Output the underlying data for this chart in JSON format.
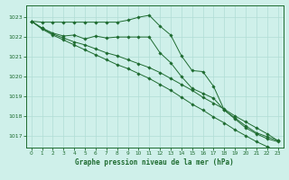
{
  "bg_color": "#cff0ea",
  "grid_color": "#b0ddd5",
  "line_color": "#1e6b30",
  "title": "Graphe pression niveau de la mer (hPa)",
  "xlim": [
    -0.5,
    23.5
  ],
  "ylim": [
    1016.4,
    1023.6
  ],
  "yticks": [
    1017,
    1018,
    1019,
    1020,
    1021,
    1022,
    1023
  ],
  "xticks": [
    0,
    1,
    2,
    3,
    4,
    5,
    6,
    7,
    8,
    9,
    10,
    11,
    12,
    13,
    14,
    15,
    16,
    17,
    18,
    19,
    20,
    21,
    22,
    23
  ],
  "series": [
    {
      "x": [
        0,
        1,
        2,
        3,
        4,
        5,
        6,
        7,
        8,
        9,
        10,
        11,
        12,
        13,
        14,
        15,
        16,
        17,
        18,
        19,
        20,
        21,
        22,
        23
      ],
      "y": [
        1022.8,
        1022.75,
        1022.75,
        1022.75,
        1022.75,
        1022.75,
        1022.75,
        1022.75,
        1022.75,
        1022.85,
        1023.0,
        1023.1,
        1022.55,
        1022.1,
        1021.05,
        1020.3,
        1020.25,
        1019.5,
        1018.3,
        1017.9,
        1017.5,
        1017.15,
        1016.95,
        1016.75
      ]
    },
    {
      "x": [
        0,
        1,
        2,
        3,
        4,
        5,
        6,
        7,
        8,
        9,
        10,
        11,
        12,
        13,
        14,
        15,
        16,
        17,
        18,
        19,
        20,
        21,
        22,
        23
      ],
      "y": [
        1022.8,
        1022.45,
        1022.2,
        1022.05,
        1022.1,
        1021.9,
        1022.05,
        1021.95,
        1022.0,
        1022.0,
        1022.0,
        1022.0,
        1021.2,
        1020.7,
        1020.0,
        1019.4,
        1019.15,
        1018.9,
        1018.3,
        1017.85,
        1017.4,
        1017.1,
        1016.85,
        1016.7
      ]
    },
    {
      "x": [
        0,
        1,
        2,
        3,
        4,
        5,
        6,
        7,
        8,
        9,
        10,
        11,
        12,
        13,
        14,
        15,
        16,
        17,
        18,
        19,
        20,
        21,
        22,
        23
      ],
      "y": [
        1022.8,
        1022.45,
        1022.15,
        1021.95,
        1021.75,
        1021.6,
        1021.4,
        1021.2,
        1021.05,
        1020.85,
        1020.65,
        1020.45,
        1020.2,
        1019.9,
        1019.6,
        1019.3,
        1018.95,
        1018.65,
        1018.35,
        1018.0,
        1017.7,
        1017.4,
        1017.1,
        1016.75
      ]
    },
    {
      "x": [
        0,
        1,
        2,
        3,
        4,
        5,
        6,
        7,
        8,
        9,
        10,
        11,
        12,
        13,
        14,
        15,
        16,
        17,
        18,
        19,
        20,
        21,
        22,
        23
      ],
      "y": [
        1022.8,
        1022.4,
        1022.1,
        1021.85,
        1021.6,
        1021.35,
        1021.1,
        1020.85,
        1020.6,
        1020.4,
        1020.15,
        1019.9,
        1019.6,
        1019.3,
        1018.95,
        1018.6,
        1018.3,
        1017.95,
        1017.65,
        1017.3,
        1017.0,
        1016.7,
        1016.45,
        1016.2
      ]
    }
  ]
}
